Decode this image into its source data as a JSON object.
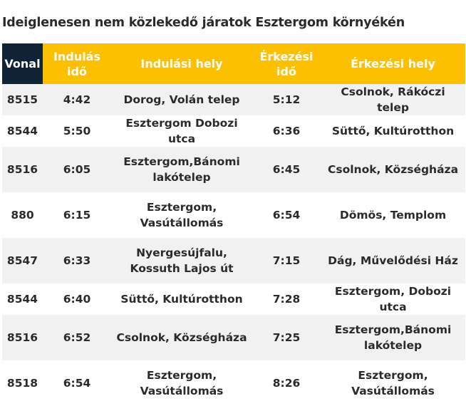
{
  "title": "Ideiglenesen nem közlekedő járatok Esztergom környékén",
  "colors": {
    "header_dark": "#0f2236",
    "header_accent": "#fcc000",
    "row_stripe": "#f1f1f1"
  },
  "table": {
    "headers": [
      "Vonal",
      "Indulás idő",
      "Indulási hely",
      "Érkezési idő",
      "Érkezési hely"
    ],
    "rows": [
      [
        "8515",
        "4:42",
        "Dorog, Volán telep",
        "5:12",
        "Csolnok, Rákóczi telep"
      ],
      [
        "8544",
        "5:50",
        "Esztergom Dobozi utca",
        "6:36",
        "Süttő, Kultúrotthon"
      ],
      [
        "8516",
        "6:05",
        "Esztergom,Bánomi lakótelep",
        "6:45",
        "Csolnok, Községháza"
      ],
      [
        "880",
        "6:15",
        "Esztergom, Vasútállomás",
        "6:54",
        "Dömös, Templom"
      ],
      [
        "8547",
        "6:33",
        "Nyergesújfalu, Kossuth Lajos út",
        "7:15",
        "Dág, Művelődési Ház"
      ],
      [
        "8544",
        "6:40",
        "Süttő, Kultúrotthon",
        "7:28",
        "Esztergom, Dobozi utca"
      ],
      [
        "8516",
        "6:52",
        "Csolnok, Községháza",
        "7:25",
        "Esztergom,Bánomi lakótelep"
      ],
      [
        "8518",
        "6:54",
        "Esztergom, Vasútállomás",
        "8:26",
        "Esztergom, Vasútállomás"
      ]
    ]
  }
}
